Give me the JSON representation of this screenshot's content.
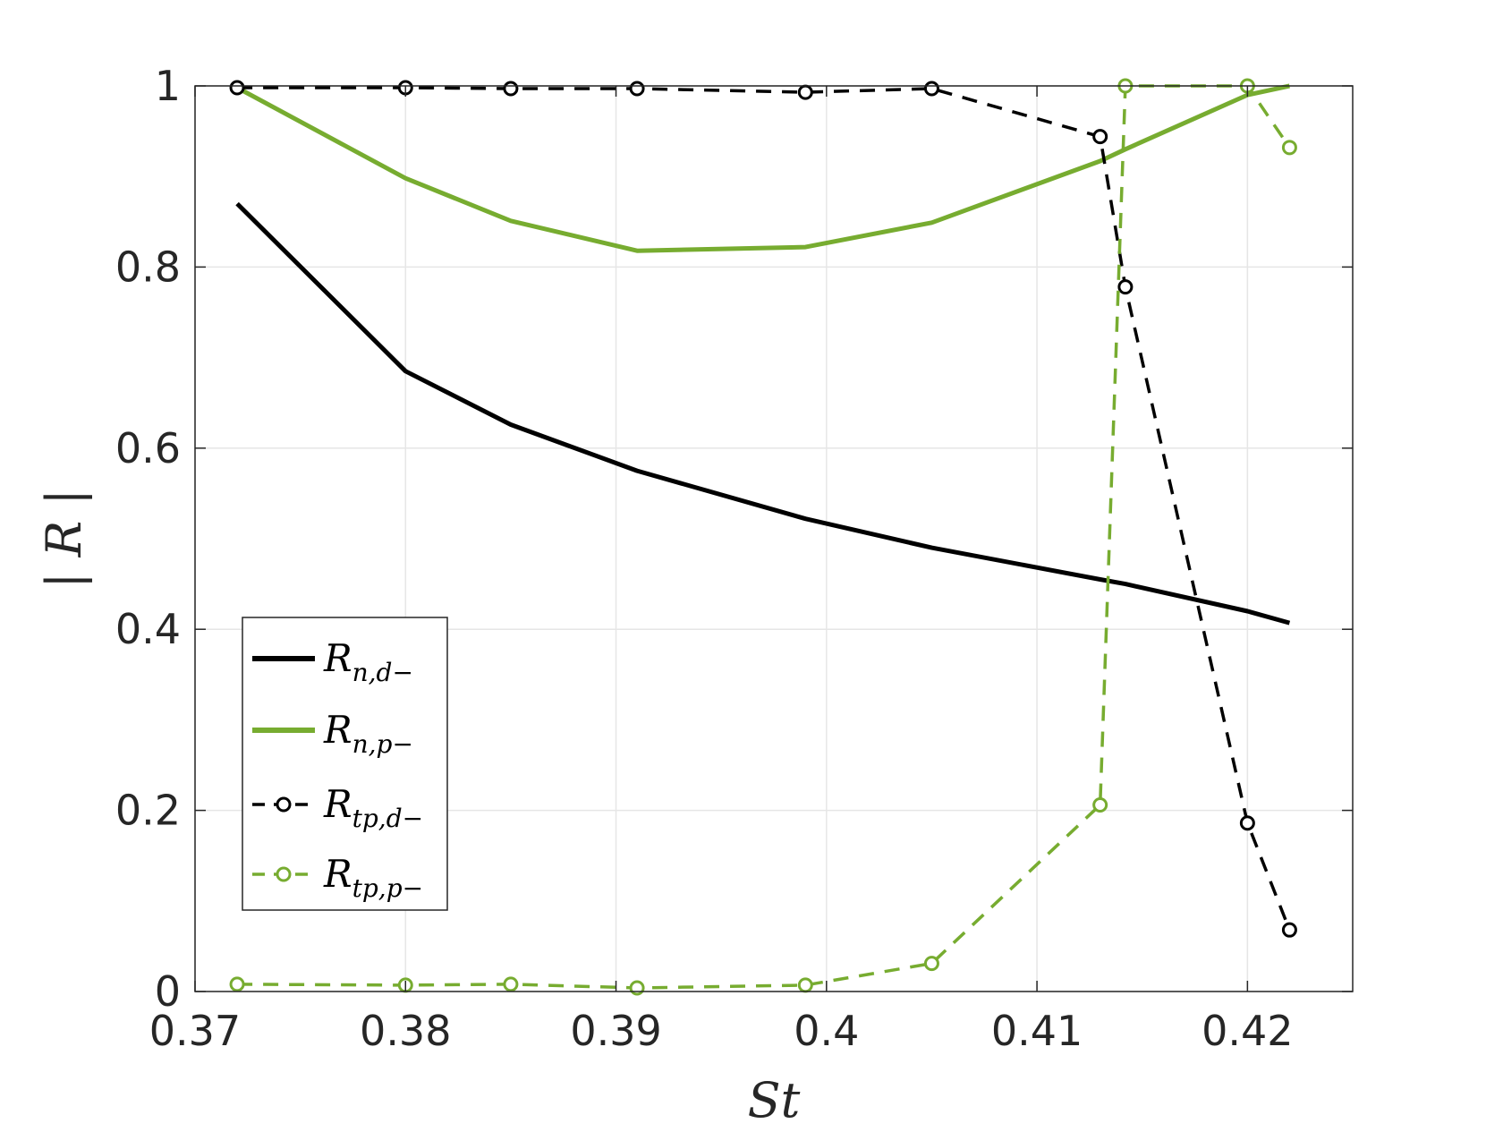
{
  "chart_data": {
    "type": "line",
    "title": "",
    "xlabel": "St",
    "ylabel": "| R |",
    "xlim": [
      0.37,
      0.425
    ],
    "ylim": [
      0,
      1
    ],
    "xticks": [
      0.37,
      0.38,
      0.39,
      0.4,
      0.41,
      0.42
    ],
    "xtick_labels": [
      "0.37",
      "0.38",
      "0.39",
      "0.4",
      "0.41",
      "0.42"
    ],
    "yticks": [
      0,
      0.2,
      0.4,
      0.6,
      0.8,
      1
    ],
    "ytick_labels": [
      "0",
      "0.2",
      "0.4",
      "0.6",
      "0.8",
      "1"
    ],
    "grid": true,
    "legend_position": "lower-left",
    "colors": {
      "black": "#000000",
      "green": "#77ac30",
      "grid": "#e6e6e6",
      "axis": "#262626"
    },
    "series": [
      {
        "name": "R",
        "sub": "n,d−",
        "color": "#000000",
        "style": "solid",
        "marker": "none",
        "x": [
          0.372,
          0.38,
          0.385,
          0.391,
          0.399,
          0.405,
          0.413,
          0.4142,
          0.42,
          0.422
        ],
        "y": [
          0.87,
          0.685,
          0.626,
          0.575,
          0.522,
          0.49,
          0.455,
          0.45,
          0.42,
          0.407
        ]
      },
      {
        "name": "R",
        "sub": "n,p−",
        "color": "#77ac30",
        "style": "solid",
        "marker": "none",
        "x": [
          0.372,
          0.38,
          0.385,
          0.391,
          0.399,
          0.405,
          0.413,
          0.4142,
          0.42,
          0.422
        ],
        "y": [
          0.998,
          0.898,
          0.851,
          0.818,
          0.822,
          0.849,
          0.917,
          0.93,
          0.99,
          1.0
        ]
      },
      {
        "name": "R",
        "sub": "tp,d−",
        "color": "#000000",
        "style": "dashed",
        "marker": "circle",
        "x": [
          0.372,
          0.38,
          0.385,
          0.391,
          0.399,
          0.405,
          0.413,
          0.4142,
          0.42,
          0.422
        ],
        "y": [
          0.998,
          0.998,
          0.997,
          0.997,
          0.993,
          0.997,
          0.944,
          0.778,
          0.186,
          0.068
        ]
      },
      {
        "name": "R",
        "sub": "tp,p−",
        "color": "#77ac30",
        "style": "dashed",
        "marker": "circle",
        "x": [
          0.372,
          0.38,
          0.385,
          0.391,
          0.399,
          0.405,
          0.413,
          0.4142,
          0.42,
          0.422
        ],
        "y": [
          0.008,
          0.007,
          0.008,
          0.004,
          0.007,
          0.031,
          0.206,
          1.0,
          1.0,
          0.932
        ]
      }
    ]
  }
}
